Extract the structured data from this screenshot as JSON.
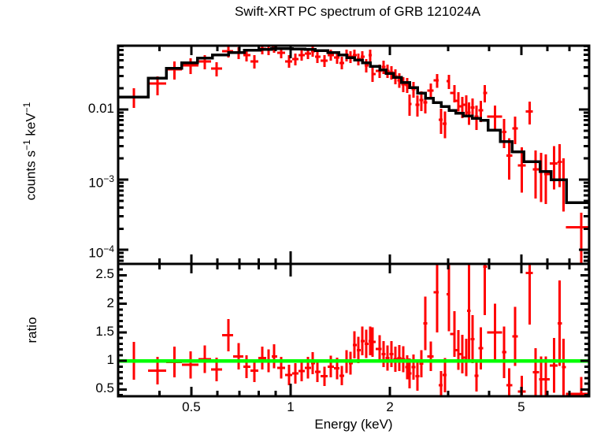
{
  "title": "Swift-XRT PC spectrum of GRB 121024A",
  "colors": {
    "data": "#ff0000",
    "model": "#000000",
    "ratio_line": "#00ff00",
    "frame": "#000000",
    "background": "#ffffff"
  },
  "axes": {
    "x": {
      "label": "Energy (keV)",
      "scale": "log",
      "min_keV": 0.3,
      "max_keV": 8.03,
      "tick_values": [
        0.5,
        1,
        2,
        5
      ],
      "tick_labels": [
        "0.5",
        "1",
        "2",
        "5"
      ],
      "minor_ticks": [
        0.4,
        0.6,
        0.7,
        0.8,
        0.9,
        3,
        4,
        6,
        7,
        8
      ]
    },
    "y_top": {
      "label_parts": {
        "p0": "counts s",
        "p1": "−1",
        "p2": " keV",
        "p3": "−1"
      },
      "scale": "log",
      "min": 6.3e-05,
      "max": 0.081,
      "tick_values": [
        0.01,
        0.001,
        0.0001
      ],
      "tick_labels": [
        {
          "base": "0.01",
          "exp": ""
        },
        {
          "base": "10",
          "exp": "−3"
        },
        {
          "base": "10",
          "exp": "−4"
        }
      ]
    },
    "y_bottom": {
      "label": "ratio",
      "scale": "linear",
      "min": 0.38,
      "max": 2.7,
      "tick_values": [
        0.5,
        1,
        1.5,
        2,
        2.5
      ],
      "tick_labels": [
        "0.5",
        "1",
        "1.5",
        "2",
        "2.5"
      ],
      "minor_step": 0.1,
      "reference_line": 1.0
    }
  },
  "chart_data": {
    "type": "scatter",
    "description": "Top: X-ray count spectrum (red data with error bars, black stepped folded model). Bottom: data/model ratio (red) with green line at ratio=1.",
    "point_columns": [
      "e_lo_keV",
      "e_keV",
      "e_hi_keV",
      "rate_lo",
      "rate",
      "rate_hi",
      "ratio",
      "ratio_err"
    ],
    "points": [
      [
        0.3,
        0.335,
        0.37,
        0.0105,
        0.0151,
        0.0201,
        1.0,
        0.33
      ],
      [
        0.37,
        0.395,
        0.42,
        0.0159,
        0.0235,
        0.0296,
        0.83,
        0.24
      ],
      [
        0.42,
        0.445,
        0.468,
        0.0267,
        0.0374,
        0.0485,
        0.98,
        0.27
      ],
      [
        0.468,
        0.497,
        0.526,
        0.032,
        0.0426,
        0.0537,
        0.93,
        0.24
      ],
      [
        0.526,
        0.549,
        0.574,
        0.0374,
        0.0485,
        0.0596,
        1.03,
        0.24
      ],
      [
        0.574,
        0.596,
        0.62,
        0.0296,
        0.0384,
        0.0472,
        0.85,
        0.21
      ],
      [
        0.62,
        0.648,
        0.669,
        0.0551,
        0.0678,
        0.0812,
        1.45,
        0.28
      ],
      [
        0.669,
        0.696,
        0.719,
        0.0524,
        0.0644,
        0.0774,
        1.08,
        0.23
      ],
      [
        0.719,
        0.735,
        0.755,
        0.0485,
        0.0596,
        0.0716,
        0.9,
        0.2
      ],
      [
        0.755,
        0.776,
        0.798,
        0.0384,
        0.0485,
        0.0596,
        0.83,
        0.2
      ],
      [
        0.798,
        0.82,
        0.843,
        0.0612,
        0.0734,
        0.0857,
        1.05,
        0.2
      ],
      [
        0.843,
        0.857,
        0.876,
        0.0596,
        0.0716,
        0.0834,
        1.0,
        0.2
      ],
      [
        0.876,
        0.891,
        0.911,
        0.0644,
        0.0774,
        0.0901,
        1.08,
        0.21
      ],
      [
        0.911,
        0.936,
        0.962,
        0.0537,
        0.0644,
        0.0774,
        0.88,
        0.19
      ],
      [
        0.962,
        0.989,
        1.011,
        0.0394,
        0.0485,
        0.0596,
        0.75,
        0.18
      ],
      [
        1.011,
        1.034,
        1.057,
        0.0426,
        0.0524,
        0.0627,
        0.78,
        0.18
      ],
      [
        1.057,
        1.08,
        1.104,
        0.0497,
        0.0596,
        0.0716,
        0.82,
        0.18
      ],
      [
        1.104,
        1.129,
        1.154,
        0.0524,
        0.0627,
        0.0753,
        0.88,
        0.19
      ],
      [
        1.154,
        1.166,
        1.186,
        0.0566,
        0.0678,
        0.0793,
        0.96,
        0.19
      ],
      [
        1.186,
        1.206,
        1.233,
        0.046,
        0.0566,
        0.0678,
        0.81,
        0.18
      ],
      [
        1.233,
        1.267,
        1.295,
        0.0405,
        0.0497,
        0.0596,
        0.73,
        0.17
      ],
      [
        1.295,
        1.324,
        1.353,
        0.0497,
        0.0596,
        0.0716,
        0.9,
        0.19
      ],
      [
        1.353,
        1.383,
        1.407,
        0.0448,
        0.0551,
        0.0661,
        0.87,
        0.19
      ],
      [
        1.407,
        1.43,
        1.454,
        0.0374,
        0.046,
        0.0566,
        0.74,
        0.17
      ],
      [
        1.454,
        1.478,
        1.503,
        0.0485,
        0.0596,
        0.0716,
        0.99,
        0.2
      ],
      [
        1.503,
        1.519,
        1.544,
        0.046,
        0.0566,
        0.0678,
        0.96,
        0.2
      ],
      [
        1.544,
        1.562,
        1.587,
        0.0485,
        0.0596,
        0.0716,
        1.28,
        0.24
      ],
      [
        1.587,
        1.605,
        1.632,
        0.0426,
        0.0524,
        0.0627,
        1.19,
        0.23
      ],
      [
        1.632,
        1.65,
        1.677,
        0.046,
        0.0566,
        0.0678,
        1.35,
        0.25
      ],
      [
        1.677,
        1.696,
        1.724,
        0.0338,
        0.0426,
        0.0524,
        1.3,
        0.25
      ],
      [
        1.724,
        1.743,
        1.76,
        0.0485,
        0.0596,
        0.0716,
        1.35,
        0.25
      ],
      [
        1.76,
        1.772,
        1.809,
        0.0246,
        0.0321,
        0.0394,
        1.33,
        0.26
      ],
      [
        1.809,
        1.862,
        1.889,
        0.0281,
        0.0354,
        0.0437,
        1.21,
        0.24
      ],
      [
        1.889,
        1.914,
        1.941,
        0.032,
        0.0405,
        0.0497,
        1.12,
        0.23
      ],
      [
        1.941,
        1.967,
        1.995,
        0.0281,
        0.0354,
        0.0437,
        1.05,
        0.22
      ],
      [
        1.995,
        2.022,
        2.051,
        0.0267,
        0.0338,
        0.0415,
        1.12,
        0.23
      ],
      [
        2.051,
        2.078,
        2.108,
        0.0229,
        0.0296,
        0.0374,
        1.03,
        0.22
      ],
      [
        2.108,
        2.136,
        2.167,
        0.0202,
        0.026,
        0.0328,
        1.05,
        0.23
      ],
      [
        2.167,
        2.196,
        2.227,
        0.0177,
        0.0229,
        0.0289,
        1.03,
        0.23
      ],
      [
        2.227,
        2.258,
        2.277,
        0.0172,
        0.0223,
        0.0281,
        0.89,
        0.21
      ],
      [
        2.277,
        2.295,
        2.327,
        0.0081,
        0.012,
        0.0164,
        0.78,
        0.26
      ],
      [
        2.327,
        2.359,
        2.392,
        0.0147,
        0.0196,
        0.0247,
        0.89,
        0.22
      ],
      [
        2.392,
        2.425,
        2.458,
        0.0079,
        0.0117,
        0.0159,
        0.73,
        0.25
      ],
      [
        2.458,
        2.493,
        2.525,
        0.0095,
        0.0136,
        0.0181,
        0.95,
        0.24
      ],
      [
        2.525,
        2.562,
        2.595,
        0.0088,
        0.0126,
        0.0172,
        1.66,
        0.47
      ],
      [
        2.595,
        2.662,
        2.708,
        0.014,
        0.0186,
        0.0235,
        1.08,
        0.26
      ],
      [
        2.708,
        2.782,
        2.812,
        0.0202,
        0.026,
        0.032,
        2.2,
        0.7
      ],
      [
        2.812,
        2.86,
        2.889,
        0.0045,
        0.0071,
        0.0103,
        0.57,
        0.25
      ],
      [
        2.889,
        2.939,
        2.968,
        0.0039,
        0.0063,
        0.0093,
        0.75,
        0.3
      ],
      [
        2.968,
        3.022,
        3.046,
        0.0196,
        0.0254,
        0.0312,
        2.17,
        0.65
      ],
      [
        3.046,
        3.14,
        3.163,
        0.0126,
        0.0172,
        0.0223,
        1.47,
        0.4
      ],
      [
        3.163,
        3.228,
        3.248,
        0.0093,
        0.0133,
        0.0177,
        1.19,
        0.35
      ],
      [
        3.248,
        3.318,
        3.336,
        0.0075,
        0.0111,
        0.0151,
        1.12,
        0.34
      ],
      [
        3.336,
        3.41,
        3.426,
        0.0079,
        0.0117,
        0.0159,
        1.06,
        0.33
      ],
      [
        3.426,
        3.468,
        3.511,
        0.006,
        0.009,
        0.0126,
        1.88,
        0.85
      ],
      [
        3.511,
        3.56,
        3.609,
        0.0071,
        0.0106,
        0.0144,
        1.38,
        0.42
      ],
      [
        3.609,
        3.66,
        3.707,
        0.0051,
        0.0079,
        0.0114,
        0.74,
        0.28
      ],
      [
        3.707,
        3.77,
        3.829,
        0.0066,
        0.0097,
        0.0133,
        1.22,
        0.37
      ],
      [
        3.829,
        3.88,
        3.938,
        0.0126,
        0.0172,
        0.0223,
        2.65,
        0.85
      ],
      [
        3.938,
        4.16,
        4.38,
        0.0051,
        0.0079,
        0.0114,
        1.5,
        0.5
      ],
      [
        4.38,
        4.44,
        4.505,
        0.0028,
        0.0048,
        0.0073,
        1.15,
        0.45
      ],
      [
        4.505,
        4.6,
        4.693,
        0.001,
        0.0022,
        0.0039,
        0.57,
        0.3
      ],
      [
        4.693,
        4.79,
        4.886,
        0.0032,
        0.0054,
        0.0079,
        1.43,
        0.52
      ],
      [
        4.886,
        5.02,
        5.158,
        0.00065,
        0.0016,
        0.0029,
        0.46,
        0.28
      ],
      [
        5.158,
        5.3,
        5.422,
        0.0061,
        0.0093,
        0.013,
        2.54,
        0.9
      ],
      [
        5.422,
        5.53,
        5.668,
        0.00054,
        0.0014,
        0.0026,
        0.8,
        0.42
      ],
      [
        5.668,
        5.75,
        5.869,
        0.00048,
        0.0013,
        0.0024,
        0.68,
        0.4
      ],
      [
        5.869,
        5.94,
        6.099,
        0.00045,
        0.0012,
        0.0023,
        0.68,
        0.4
      ],
      [
        6.099,
        6.28,
        6.439,
        0.00072,
        0.0017,
        0.003,
        0.92,
        0.48
      ],
      [
        6.439,
        6.53,
        6.646,
        0.00078,
        0.0018,
        0.0032,
        1.66,
        0.75
      ],
      [
        6.646,
        6.71,
        6.82,
        0.00035,
        0.001,
        0.002,
        0.89,
        0.5
      ],
      [
        6.82,
        7.61,
        8.03,
        6.4e-05,
        0.00021,
        0.00034,
        0.42,
        0.3
      ]
    ],
    "model_step_columns": [
      "e_from_keV",
      "model_rate"
    ],
    "model_steps": [
      [
        0.3,
        0.015
      ],
      [
        0.37,
        0.0281
      ],
      [
        0.42,
        0.0384
      ],
      [
        0.468,
        0.046
      ],
      [
        0.522,
        0.0538
      ],
      [
        0.58,
        0.06
      ],
      [
        0.648,
        0.065
      ],
      [
        0.723,
        0.07
      ],
      [
        0.807,
        0.072
      ],
      [
        0.876,
        0.0733
      ],
      [
        1.011,
        0.0727
      ],
      [
        1.104,
        0.0714
      ],
      [
        1.186,
        0.069
      ],
      [
        1.295,
        0.065
      ],
      [
        1.398,
        0.06
      ],
      [
        1.478,
        0.055
      ],
      [
        1.561,
        0.0505
      ],
      [
        1.65,
        0.046
      ],
      [
        1.743,
        0.041
      ],
      [
        1.862,
        0.0366
      ],
      [
        1.945,
        0.0328
      ],
      [
        2.051,
        0.0285
      ],
      [
        2.167,
        0.0241
      ],
      [
        2.295,
        0.0205
      ],
      [
        2.425,
        0.0172
      ],
      [
        2.56,
        0.0145
      ],
      [
        2.708,
        0.0126
      ],
      [
        2.86,
        0.011
      ],
      [
        3.022,
        0.0097
      ],
      [
        3.163,
        0.0088
      ],
      [
        3.336,
        0.0081
      ],
      [
        3.556,
        0.0075
      ],
      [
        3.77,
        0.007
      ],
      [
        3.97,
        0.0051
      ],
      [
        4.32,
        0.0035
      ],
      [
        4.69,
        0.0025
      ],
      [
        5.09,
        0.0018
      ],
      [
        5.7,
        0.0013
      ],
      [
        6.15,
        0.001
      ],
      [
        6.86,
        0.00047
      ],
      [
        8.03,
        0.00047
      ]
    ]
  }
}
